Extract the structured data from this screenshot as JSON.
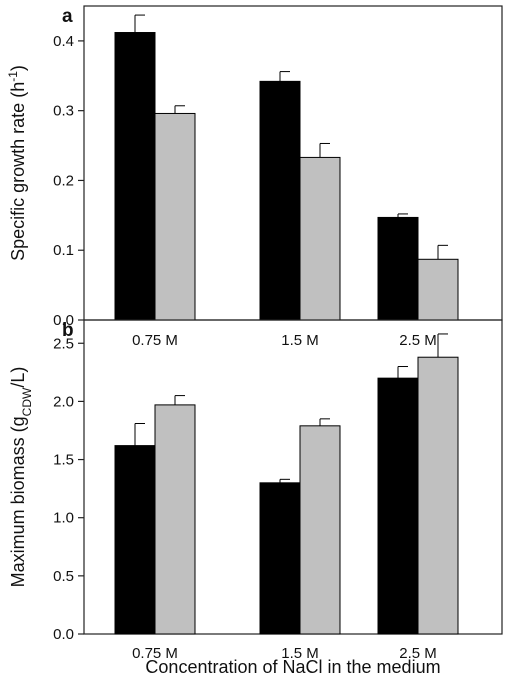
{
  "colors": {
    "series_a": "#000000",
    "series_b": "#c0c0c0",
    "axis": "#222222"
  },
  "chart_data": [
    {
      "type": "bar",
      "panel_label": "a",
      "categories": [
        "0.75 M",
        "1.5 M",
        "2.5 M"
      ],
      "series": [
        {
          "values": [
            0.412,
            0.342,
            0.147
          ],
          "errors": [
            0.025,
            0.014,
            0.005
          ]
        },
        {
          "values": [
            0.296,
            0.233,
            0.087
          ],
          "errors": [
            0.011,
            0.02,
            0.02
          ]
        }
      ],
      "ylabel": "Specific growth rate (h",
      "ylabel_sup": "-1",
      "ylabel_end": ")",
      "ylim": [
        0,
        0.45
      ],
      "yticks": [
        0.0,
        0.1,
        0.2,
        0.3,
        0.4
      ],
      "ytick_labels": [
        "0.0",
        "0.1",
        "0.2",
        "0.3",
        "0.4"
      ],
      "grid": false
    },
    {
      "type": "bar",
      "panel_label": "b",
      "categories": [
        "0.75 M",
        "1.5 M",
        "2.5 M"
      ],
      "series": [
        {
          "values": [
            1.62,
            1.3,
            2.2
          ],
          "errors": [
            0.19,
            0.03,
            0.1
          ]
        },
        {
          "values": [
            1.97,
            1.79,
            2.38
          ],
          "errors": [
            0.08,
            0.06,
            0.2
          ]
        }
      ],
      "ylabel": "Maximum biomass (g",
      "ylabel_sub": "CDW",
      "ylabel_end": "/L)",
      "xlabel": "Concentration of NaCl in the medium",
      "ylim": [
        0,
        2.7
      ],
      "yticks": [
        0.0,
        0.5,
        1.0,
        1.5,
        2.0,
        2.5
      ],
      "ytick_labels": [
        "0.0",
        "0.5",
        "1.0",
        "1.5",
        "2.0",
        "2.5"
      ],
      "grid": false
    }
  ]
}
